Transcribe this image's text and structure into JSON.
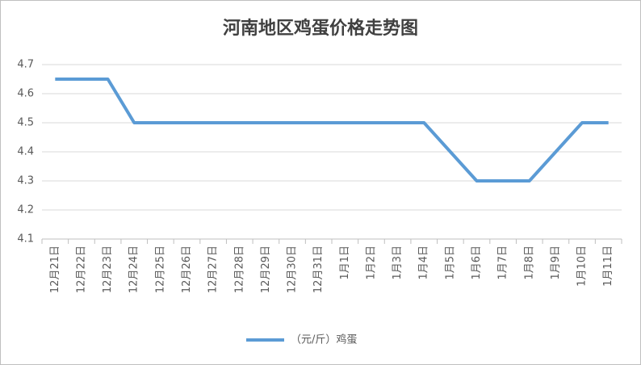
{
  "chart_data": {
    "type": "line",
    "title": "河南地区鸡蛋价格走势图",
    "categories": [
      "12月21日",
      "12月22日",
      "12月23日",
      "12月24日",
      "12月25日",
      "12月26日",
      "12月27日",
      "12月28日",
      "12月29日",
      "12月30日",
      "12月31日",
      "1月1日",
      "1月2日",
      "1月3日",
      "1月4日",
      "1月5日",
      "1月6日",
      "1月7日",
      "1月8日",
      "1月9日",
      "1月10日",
      "1月11日"
    ],
    "series": [
      {
        "name": "（元/斤）鸡蛋",
        "color": "#5b9bd5",
        "values": [
          4.65,
          4.65,
          4.65,
          4.5,
          4.5,
          4.5,
          4.5,
          4.5,
          4.5,
          4.5,
          4.5,
          4.5,
          4.5,
          4.5,
          4.5,
          4.4,
          4.3,
          4.3,
          4.3,
          4.4,
          4.5,
          4.5
        ]
      }
    ],
    "ylim": [
      4.1,
      4.7
    ],
    "yticks": [
      4.1,
      4.2,
      4.3,
      4.4,
      4.5,
      4.6,
      4.7
    ],
    "grid": true,
    "legend": "bottom"
  }
}
